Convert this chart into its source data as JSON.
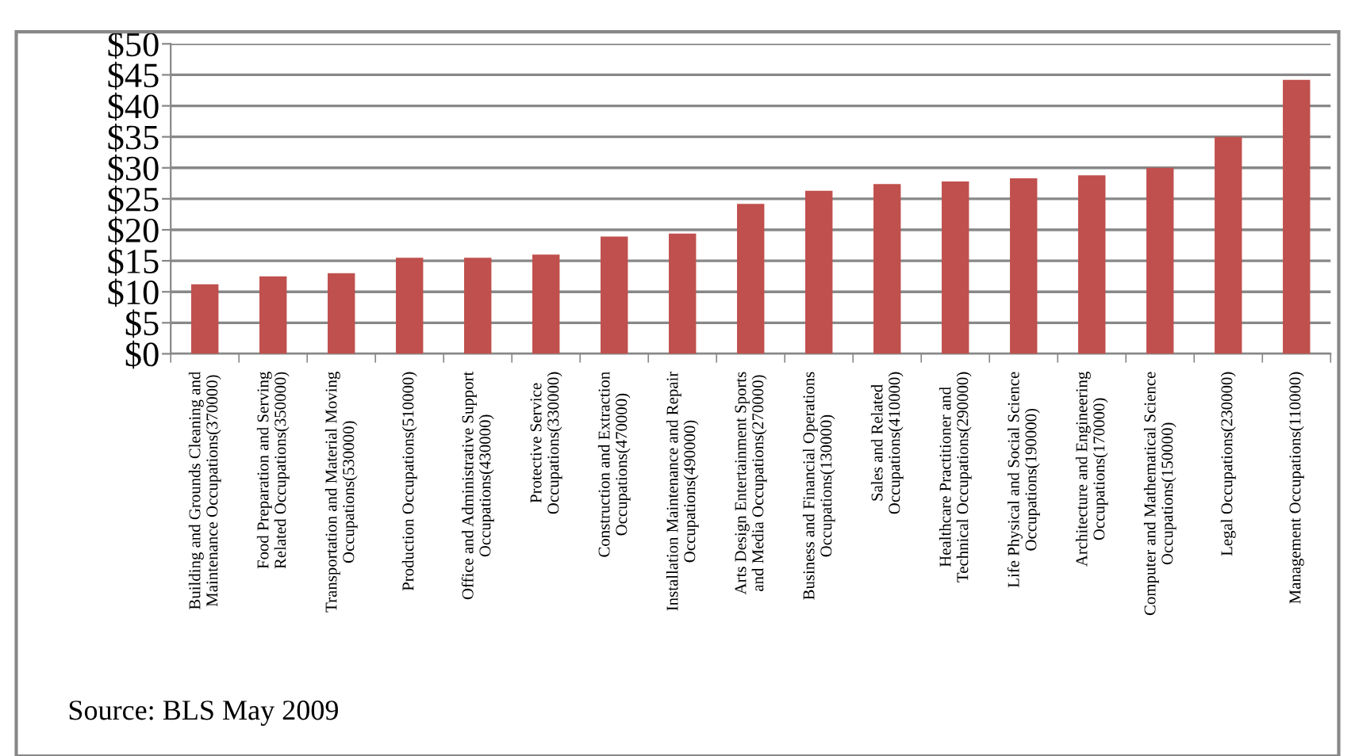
{
  "chart_data": {
    "type": "bar",
    "categories": [
      "Building and Grounds Cleaning and\nMaintenance Occupations(370000)",
      "Food Preparation and Serving\nRelated Occupations(350000)",
      "Transportation and Material Moving\nOccupations(530000)",
      "Production Occupations(510000)",
      "Office and Administrative Support\nOccupations(430000)",
      "Protective Service\nOccupations(330000)",
      "Construction and Extraction\nOccupations(470000)",
      "Installation Maintenance and Repair\nOccupations(490000)",
      "Arts Design Entertainment Sports\nand Media Occupations(270000)",
      "Business and Financial Operations\nOccupations(130000)",
      "Sales and Related\nOccupations(410000)",
      "Healthcare Practitioner and\nTechnical Occupations(290000)",
      "Life Physical and Social Science\nOccupations(190000)",
      "Architecture and Engineering\nOccupations(170000)",
      "Computer and Mathematical Science\nOccupations(150000)",
      "Legal Occupations(230000)",
      "Management Occupations(110000)"
    ],
    "values": [
      11.2,
      12.5,
      13.0,
      15.5,
      15.5,
      16.0,
      18.9,
      19.4,
      24.2,
      26.3,
      27.4,
      27.8,
      28.3,
      28.8,
      30.0,
      35.0,
      44.2
    ],
    "color": "#c0504d",
    "ylim": [
      0,
      50
    ],
    "yticks": [
      {
        "value": 0,
        "label": "$0"
      },
      {
        "value": 5,
        "label": "$5"
      },
      {
        "value": 10,
        "label": "$10"
      },
      {
        "value": 15,
        "label": "$15"
      },
      {
        "value": 20,
        "label": "$20"
      },
      {
        "value": 25,
        "label": "$25"
      },
      {
        "value": 30,
        "label": "$30"
      },
      {
        "value": 35,
        "label": "$35"
      },
      {
        "value": 40,
        "label": "$40"
      },
      {
        "value": 45,
        "label": "$45"
      },
      {
        "value": 50,
        "label": "$50"
      }
    ],
    "grid": "y",
    "legend": false,
    "annotations": [
      "Source: BLS May 2009"
    ]
  }
}
